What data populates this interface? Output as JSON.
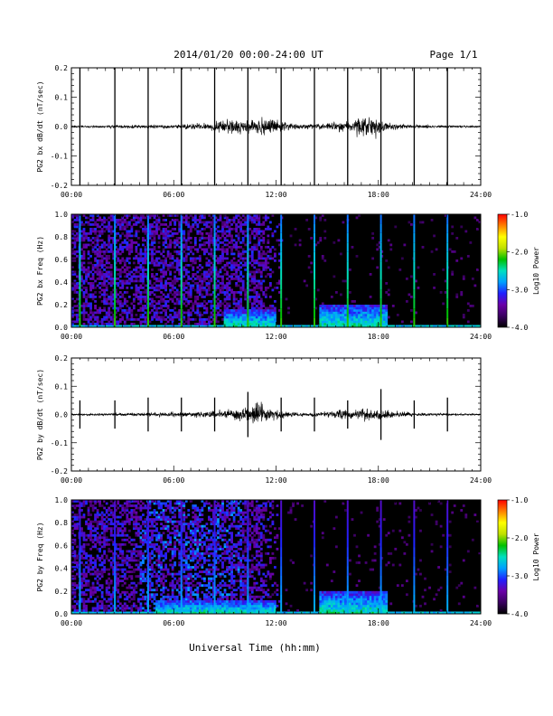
{
  "header": {
    "title": "2014/01/20  00:00-24:00 UT",
    "page": "Page 1/1"
  },
  "footer": {
    "xlabel": "Universal Time (hh:mm)"
  },
  "colors": {
    "background": "#ffffff",
    "axis": "#000000",
    "spectrogram_background": "#000000",
    "colormap": [
      "#000000",
      "#3a0060",
      "#6a00a8",
      "#2020ff",
      "#00a0ff",
      "#00e0c0",
      "#00c000",
      "#c0e000",
      "#ffff00",
      "#ff8000",
      "#ff0000"
    ]
  },
  "chart_data": [
    {
      "type": "line",
      "title": "",
      "ylabel": "PG2 bx dB/dt (nT/sec)",
      "xlabel": "",
      "xlim": [
        0,
        24
      ],
      "ylim": [
        -0.2,
        0.2
      ],
      "xticks": [
        "00:00",
        "06:00",
        "12:00",
        "18:00",
        "24:00"
      ],
      "yticks": [
        "-0.2",
        "-0.1",
        "0.0",
        "0.1",
        "0.2"
      ],
      "baseline": 0.0,
      "spike_times_hours": [
        0.5,
        2.55,
        4.5,
        6.45,
        8.4,
        10.35,
        12.3,
        14.25,
        16.2,
        18.15,
        20.1,
        22.05
      ],
      "noise_envelope": {
        "hours": [
          0,
          2,
          4,
          6,
          8,
          9,
          10,
          11,
          12,
          13,
          14,
          15,
          16,
          17,
          17.5,
          18,
          19,
          20,
          22,
          24
        ],
        "amplitude": [
          0.003,
          0.004,
          0.006,
          0.008,
          0.012,
          0.02,
          0.028,
          0.03,
          0.022,
          0.01,
          0.008,
          0.012,
          0.02,
          0.03,
          0.035,
          0.025,
          0.01,
          0.006,
          0.004,
          0.003
        ]
      }
    },
    {
      "type": "heatmap",
      "title": "",
      "ylabel": "PG2 bx Freq (Hz)",
      "xlabel": "",
      "xlim": [
        0,
        24
      ],
      "ylim": [
        0.0,
        1.0
      ],
      "xticks": [
        "00:00",
        "06:00",
        "12:00",
        "18:00",
        "24:00"
      ],
      "yticks": [
        "0.0",
        "0.2",
        "0.4",
        "0.6",
        "0.8",
        "1.0"
      ],
      "colorbar_label": "Log10 Power",
      "colorbar_range": [
        -4.0,
        -1.0
      ],
      "colorbar_ticks": [
        "-1.0",
        "-2.0",
        "-3.0",
        "-4.0"
      ],
      "spike_times_hours": [
        0.5,
        2.55,
        4.5,
        6.45,
        8.4,
        10.35,
        12.3,
        14.25,
        16.2,
        18.15,
        20.1,
        22.05
      ],
      "broadband_activity_until_hours": 12.5,
      "low_frequency_enhancements": [
        {
          "start_hours": 9.0,
          "end_hours": 12.0,
          "max_freq_hz": 0.15
        },
        {
          "start_hours": 14.5,
          "end_hours": 18.5,
          "max_freq_hz": 0.2
        }
      ]
    },
    {
      "type": "line",
      "title": "",
      "ylabel": "PG2 by dB/dt (nT/sec)",
      "xlabel": "",
      "xlim": [
        0,
        24
      ],
      "ylim": [
        -0.2,
        0.2
      ],
      "xticks": [
        "00:00",
        "06:00",
        "12:00",
        "18:00",
        "24:00"
      ],
      "yticks": [
        "-0.2",
        "-0.1",
        "0.0",
        "0.1",
        "0.2"
      ],
      "baseline": 0.0,
      "spike_times_hours": [
        0.5,
        2.55,
        4.5,
        6.45,
        8.4,
        10.35,
        12.3,
        14.25,
        16.2,
        18.15,
        20.1,
        22.05
      ],
      "spike_amplitudes": [
        0.05,
        0.05,
        0.06,
        0.06,
        0.06,
        0.08,
        0.06,
        0.06,
        0.05,
        0.09,
        0.05,
        0.06
      ],
      "noise_envelope": {
        "hours": [
          0,
          2,
          4,
          6,
          8,
          9,
          10,
          11,
          12,
          13,
          14,
          15,
          16,
          17,
          18,
          19,
          20,
          22,
          24
        ],
        "amplitude": [
          0.003,
          0.004,
          0.006,
          0.008,
          0.01,
          0.015,
          0.03,
          0.04,
          0.02,
          0.008,
          0.006,
          0.01,
          0.018,
          0.02,
          0.02,
          0.012,
          0.006,
          0.004,
          0.003
        ]
      }
    },
    {
      "type": "heatmap",
      "title": "",
      "ylabel": "PG2 by Freq (Hz)",
      "xlabel": "",
      "xlim": [
        0,
        24
      ],
      "ylim": [
        0.0,
        1.0
      ],
      "xticks": [
        "00:00",
        "06:00",
        "12:00",
        "18:00",
        "24:00"
      ],
      "yticks": [
        "0.0",
        "0.2",
        "0.4",
        "0.6",
        "0.8",
        "1.0"
      ],
      "colorbar_label": "Log10 Power",
      "colorbar_range": [
        -4.0,
        -1.0
      ],
      "colorbar_ticks": [
        "-1.0",
        "-2.0",
        "-3.0",
        "-4.0"
      ],
      "spike_times_hours": [
        0.5,
        2.55,
        4.5,
        6.45,
        8.4,
        10.35,
        12.3,
        14.25,
        16.2,
        18.15,
        20.1,
        22.05
      ],
      "broadband_activity_until_hours": 12.5,
      "low_frequency_enhancements": [
        {
          "start_hours": 5.0,
          "end_hours": 12.0,
          "max_freq_hz": 0.12
        },
        {
          "start_hours": 14.5,
          "end_hours": 18.5,
          "max_freq_hz": 0.2
        }
      ]
    }
  ]
}
